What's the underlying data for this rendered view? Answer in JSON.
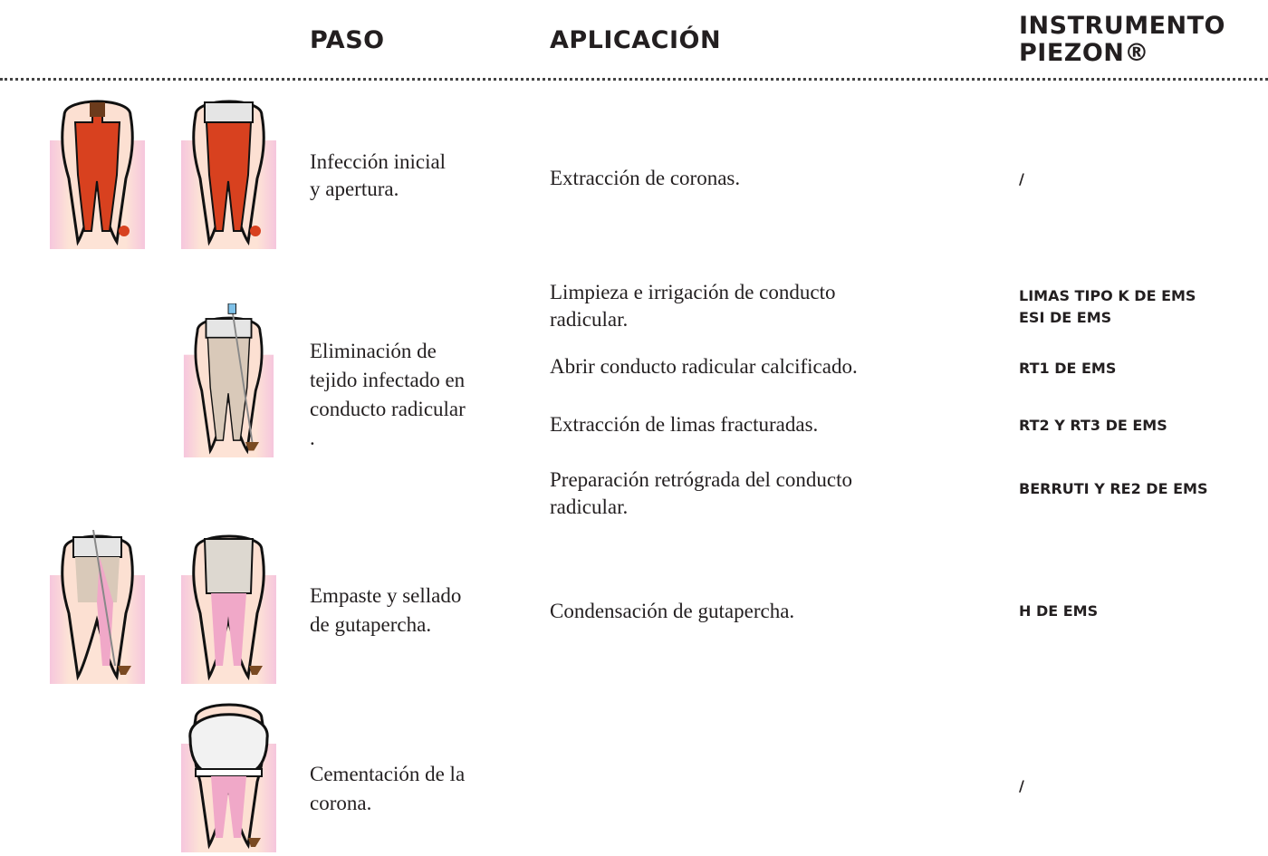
{
  "header": {
    "paso": "PASO",
    "aplicacion": "APLICACIÓN",
    "instrumento": [
      "INSTRUMENTO",
      "PIEZON®"
    ]
  },
  "rows": [
    {
      "step": [
        "Infección inicial",
        "y apertura."
      ],
      "applications": [
        {
          "text": [
            "Extracción de coronas."
          ],
          "instrument": [
            "/"
          ]
        }
      ]
    },
    {
      "step": [
        "Eliminación de",
        "tejido infectado en",
        "conducto radicular",
        "."
      ],
      "applications": [
        {
          "text": [
            "Limpieza e irrigación de conducto",
            "radicular."
          ],
          "instrument": [
            "LIMAS TIPO K DE EMS",
            "ESI DE EMS"
          ]
        },
        {
          "text": [
            "Abrir conducto radicular calcificado."
          ],
          "instrument": [
            "RT1 DE EMS"
          ]
        },
        {
          "text": [
            "Extracción de limas fracturadas."
          ],
          "instrument": [
            "RT2 Y RT3 DE EMS"
          ]
        },
        {
          "text": [
            "Preparación retrógrada del conducto",
            "radicular."
          ],
          "instrument": [
            "BERRUTI Y RE2 DE EMS"
          ]
        }
      ]
    },
    {
      "step": [
        "Empaste y sellado",
        "de gutapercha."
      ],
      "applications": [
        {
          "text": [
            "Condensación de gutapercha."
          ],
          "instrument": [
            "H DE EMS"
          ]
        }
      ]
    },
    {
      "step": [
        "Cementación de la",
        "corona."
      ],
      "applications": [
        {
          "instrument": [
            "/"
          ]
        }
      ]
    }
  ]
}
